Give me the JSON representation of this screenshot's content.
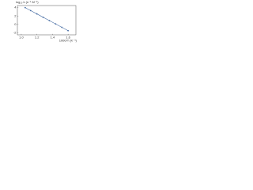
{
  "chart_data": {
    "type": "line",
    "y_label": "log₁₀ k (s⁻¹ M⁻¹)",
    "x_label": "1000/T (K⁻¹)",
    "x": [
      1.05,
      1.12,
      1.2,
      1.28,
      1.36,
      1.44,
      1.52,
      1.6
    ],
    "values": [
      4,
      3.3,
      2.5,
      1.7,
      0.9,
      0.1,
      -0.7,
      -1.5
    ],
    "color": "#4a6fa5",
    "xlim": [
      0.95,
      1.7
    ],
    "ylim": [
      -2.5,
      4.5
    ],
    "xticks": [
      {
        "value": 1,
        "label": "1.0"
      },
      {
        "value": 1.2,
        "label": "1.2"
      },
      {
        "value": 1.4,
        "label": "1.4"
      },
      {
        "value": 1.6,
        "label": "1.6"
      }
    ],
    "yticks": [
      4,
      2,
      0,
      -2
    ]
  }
}
